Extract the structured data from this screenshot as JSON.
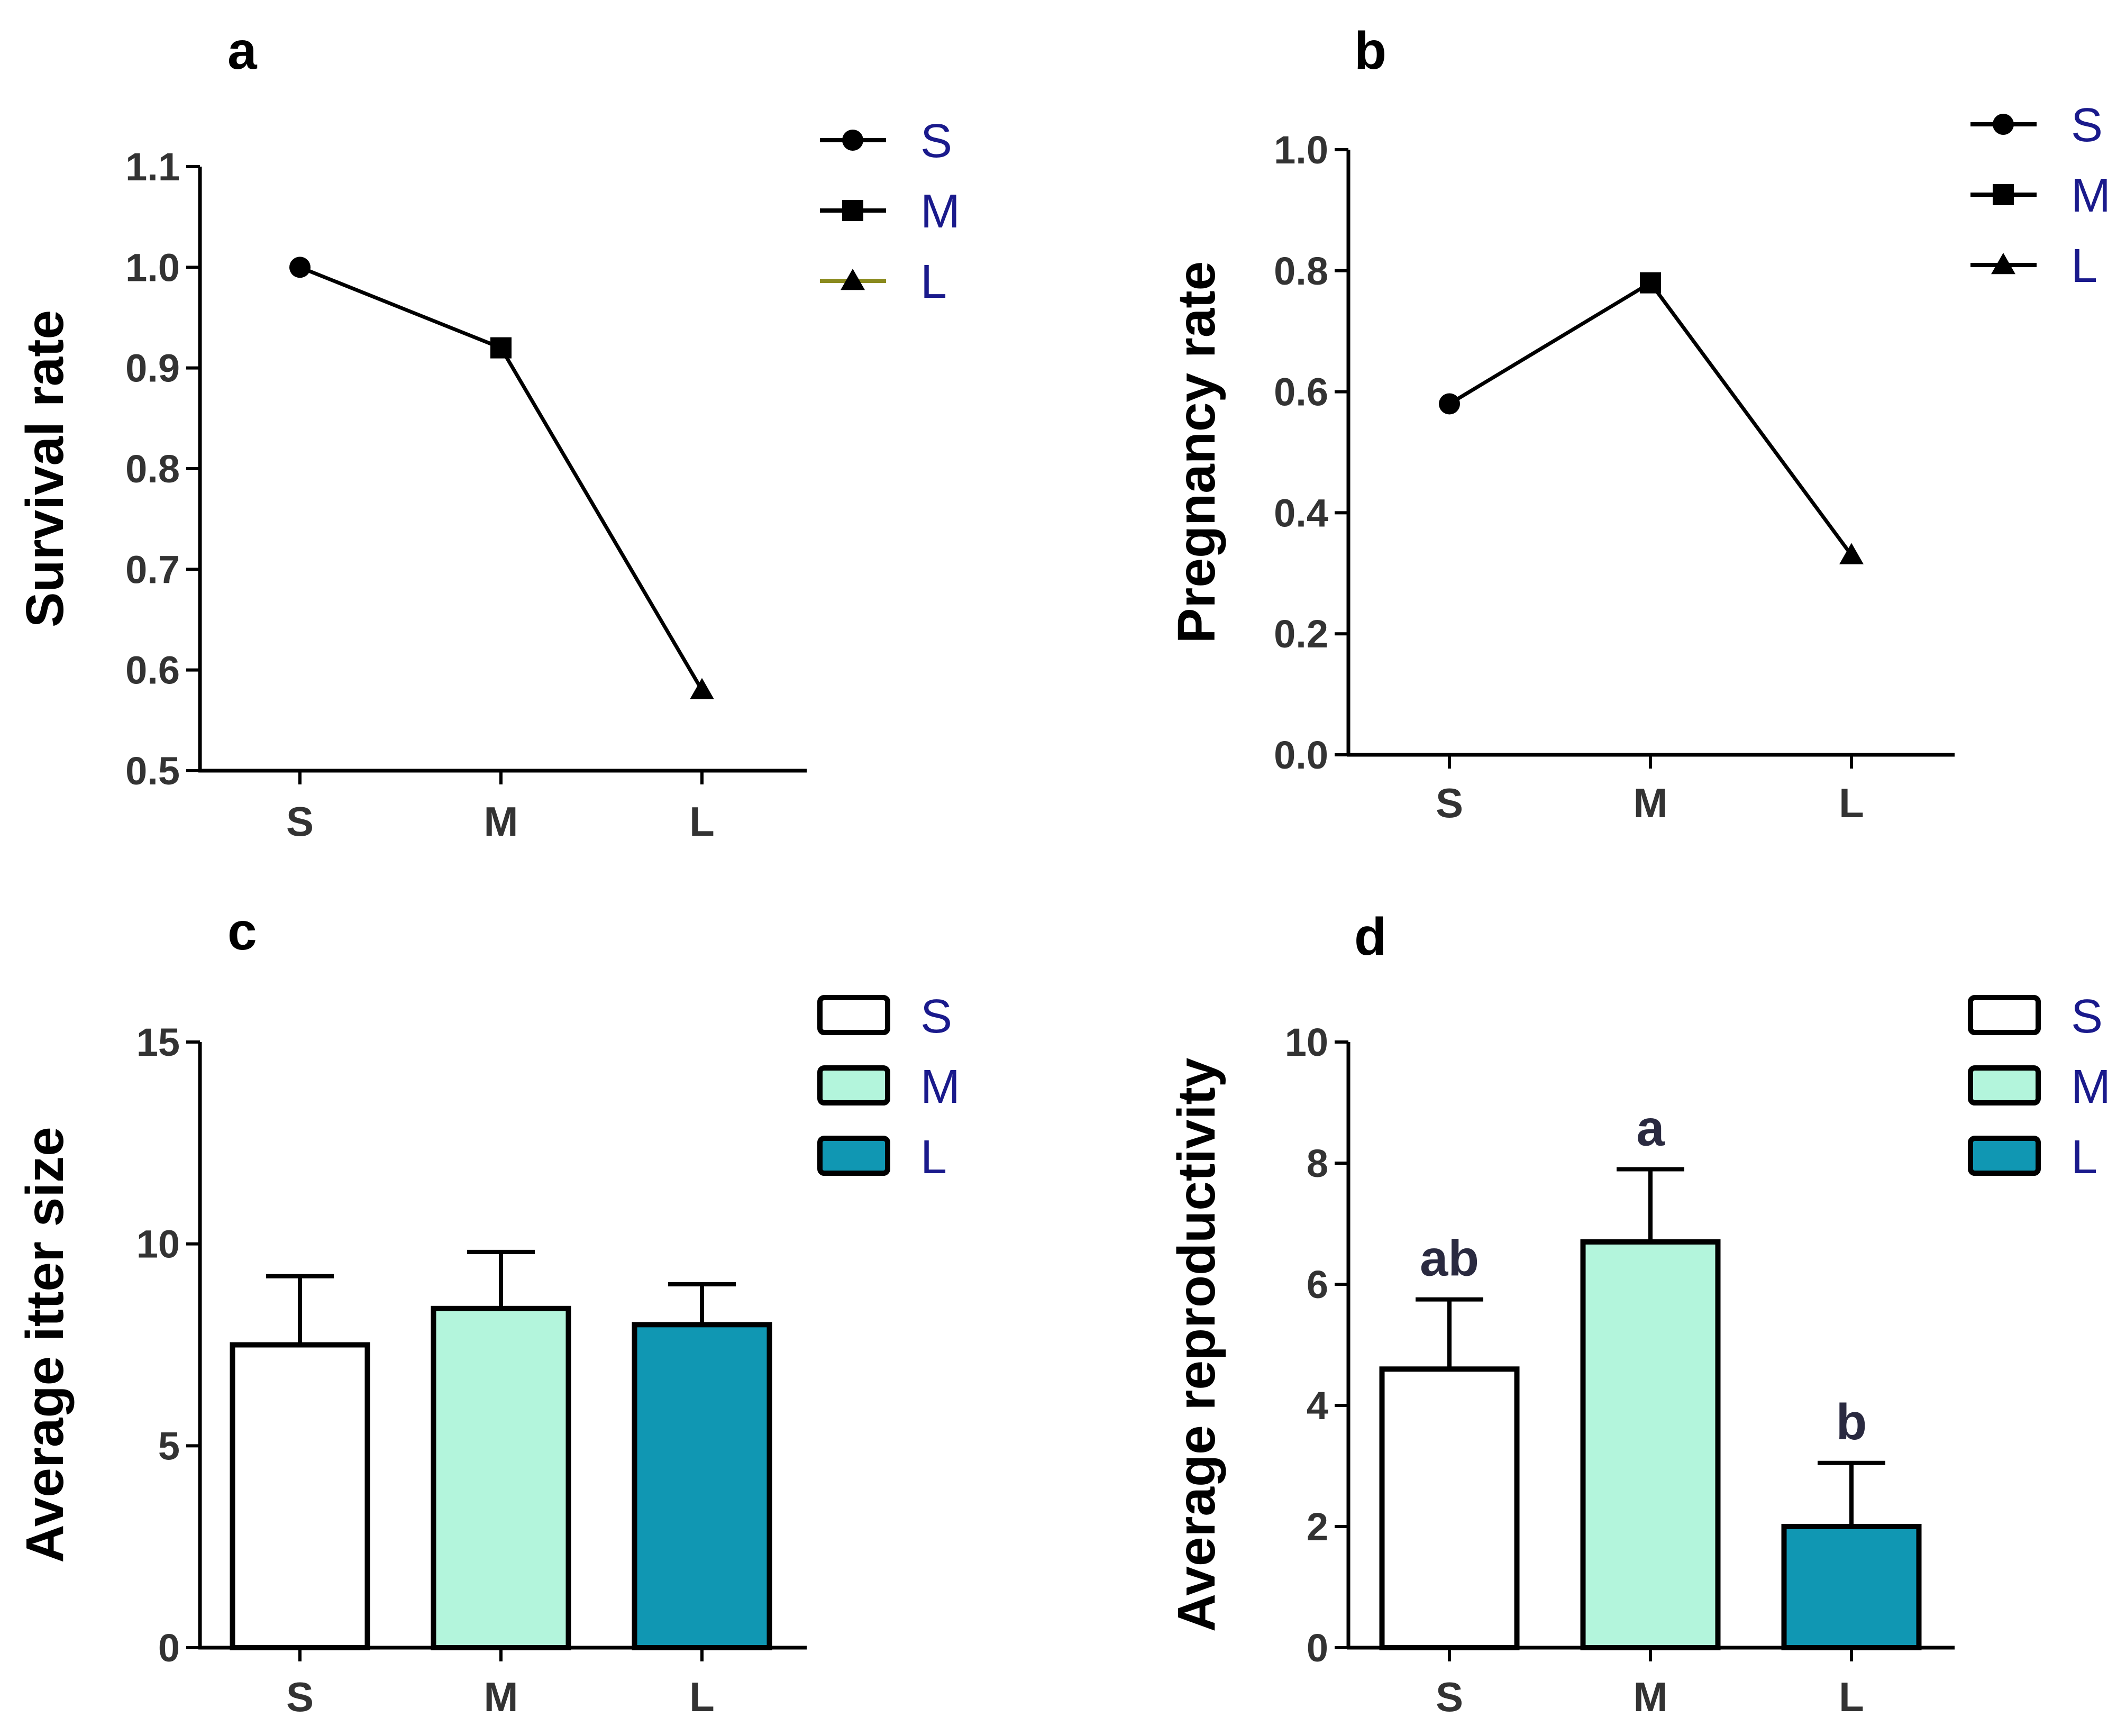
{
  "chart_data": [
    {
      "panel": "a",
      "type": "line",
      "categories": [
        "S",
        "M",
        "L"
      ],
      "values": [
        1.0,
        0.92,
        0.58
      ],
      "markers": [
        "circle",
        "square",
        "triangle"
      ],
      "ylabel": "Survival rate",
      "ylim": [
        0.5,
        1.1
      ],
      "yticks": [
        0.5,
        0.6,
        0.7,
        0.8,
        0.9,
        1.0,
        1.1
      ],
      "ytick_labels": [
        "0.5",
        "0.6",
        "0.7",
        "0.8",
        "0.9",
        "1.0",
        "1.1"
      ],
      "legend": [
        {
          "label": "S",
          "marker": "circle",
          "line_color": "#000000"
        },
        {
          "label": "M",
          "marker": "square",
          "line_color": "#000000"
        },
        {
          "label": "L",
          "marker": "triangle",
          "line_color": "#8a8a1e"
        }
      ]
    },
    {
      "panel": "b",
      "type": "line",
      "categories": [
        "S",
        "M",
        "L"
      ],
      "values": [
        0.58,
        0.78,
        0.33
      ],
      "markers": [
        "circle",
        "square",
        "triangle"
      ],
      "ylabel": "Pregnancy rate",
      "ylim": [
        0.0,
        1.0
      ],
      "yticks": [
        0.0,
        0.2,
        0.4,
        0.6,
        0.8,
        1.0
      ],
      "ytick_labels": [
        "0.0",
        "0.2",
        "0.4",
        "0.6",
        "0.8",
        "1.0"
      ],
      "legend": [
        {
          "label": "S",
          "marker": "circle",
          "line_color": "#000000"
        },
        {
          "label": "M",
          "marker": "square",
          "line_color": "#000000"
        },
        {
          "label": "L",
          "marker": "triangle",
          "line_color": "#000000"
        }
      ]
    },
    {
      "panel": "c",
      "type": "bar",
      "categories": [
        "S",
        "M",
        "L"
      ],
      "values": [
        7.5,
        8.4,
        8.0
      ],
      "errors": [
        1.7,
        1.4,
        1.0
      ],
      "colors": [
        "#ffffff",
        "#b3f5dc",
        "#1097b3"
      ],
      "ylabel": "Average itter size",
      "ylim": [
        0,
        15
      ],
      "yticks": [
        0,
        5,
        10,
        15
      ],
      "ytick_labels": [
        "0",
        "5",
        "10",
        "15"
      ],
      "significance": [
        "",
        "",
        ""
      ],
      "legend": [
        {
          "label": "S",
          "fill": "#ffffff"
        },
        {
          "label": "M",
          "fill": "#b3f5dc"
        },
        {
          "label": "L",
          "fill": "#1097b3"
        }
      ]
    },
    {
      "panel": "d",
      "type": "bar",
      "categories": [
        "S",
        "M",
        "L"
      ],
      "values": [
        4.6,
        6.7,
        2.0
      ],
      "errors": [
        1.15,
        1.2,
        1.05
      ],
      "colors": [
        "#ffffff",
        "#b3f5dc",
        "#1097b3"
      ],
      "ylabel": "Average reproductivity",
      "ylim": [
        0,
        10
      ],
      "yticks": [
        0,
        2,
        4,
        6,
        8,
        10
      ],
      "ytick_labels": [
        "0",
        "2",
        "4",
        "6",
        "8",
        "10"
      ],
      "significance": [
        "ab",
        "a",
        "b"
      ],
      "legend": [
        {
          "label": "S",
          "fill": "#ffffff"
        },
        {
          "label": "M",
          "fill": "#b3f5dc"
        },
        {
          "label": "L",
          "fill": "#1097b3"
        }
      ]
    }
  ]
}
